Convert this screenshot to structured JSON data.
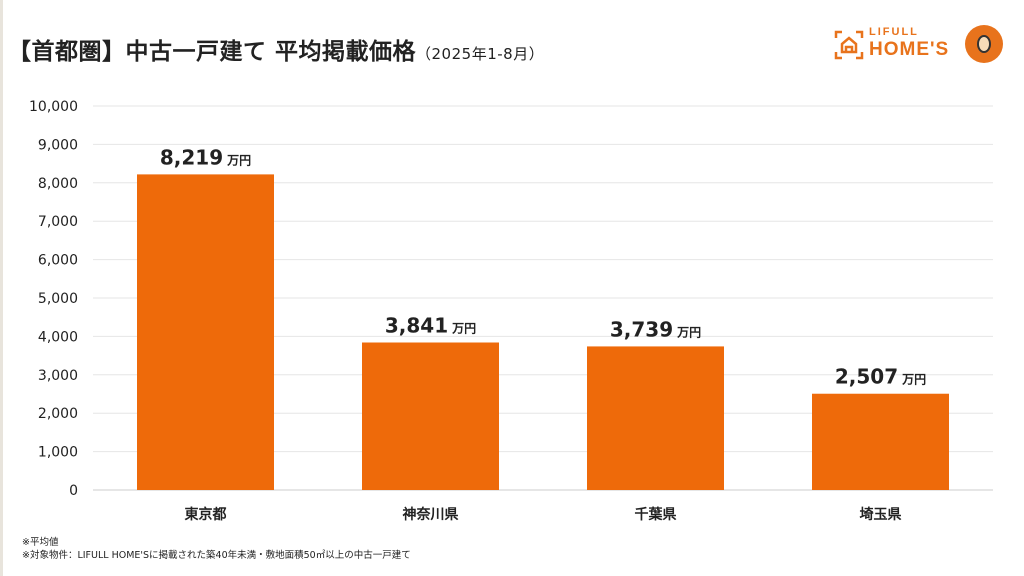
{
  "title": {
    "main": "【首都圏】中古一戸建て 平均掲載価格",
    "sub": "（2025年1-8月）"
  },
  "logo": {
    "line1": "LIFULL",
    "line2": "HOME'S"
  },
  "chart_data": {
    "type": "bar",
    "categories": [
      "東京都",
      "神奈川県",
      "千葉県",
      "埼玉県"
    ],
    "values": [
      8219,
      3841,
      3739,
      2507
    ],
    "data_labels": [
      "8,219",
      "3,841",
      "3,739",
      "2,507"
    ],
    "unit_label": "万円",
    "ylim": [
      0,
      10000
    ],
    "yticks": [
      "0",
      "1,000",
      "2,000",
      "3,000",
      "4,000",
      "5,000",
      "6,000",
      "7,000",
      "8,000",
      "9,000",
      "10,000"
    ],
    "grid": true,
    "bar_color": "#EE6A0A"
  },
  "notes": [
    "※平均値",
    "※対象物件：LIFULL HOME'Sに掲載された築40年未満・敷地面積50㎡以上の中古一戸建て"
  ]
}
